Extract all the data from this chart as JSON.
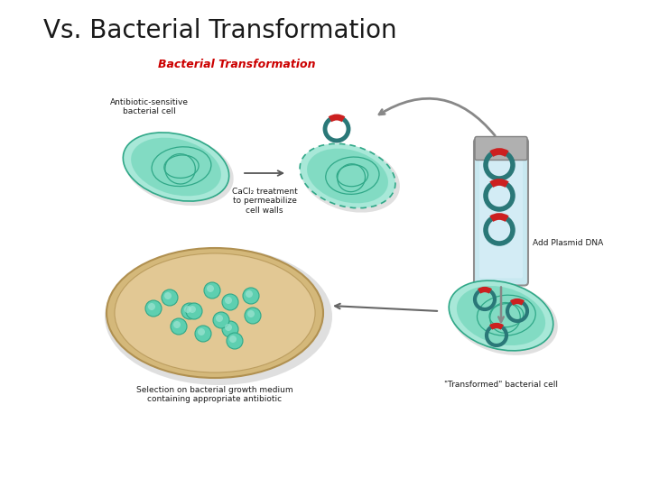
{
  "title": "Vs. Bacterial Transformation",
  "title_fontsize": 20,
  "title_color": "#1a1a1a",
  "background_color": "#ffffff",
  "diagram": {
    "title_text": "Bacterial Transformation",
    "title_color": "#cc0000",
    "title_fontsize": 9,
    "label_antibiotic": "Antibiotic-sensitive\nbacterial cell",
    "label_cacl2": "CaCl₂ treatment\nto permeabilize\ncell walls",
    "label_plasmid": "Add Plasmid DNA",
    "label_selection": "Selection on bacterial growth medium\ncontaining appropriate antibiotic",
    "label_transformed": "\"Transformed\" bacterial cell",
    "cell_fill": "#5ecfb0",
    "cell_fill2": "#a8e8d8",
    "cell_edge": "#30a888",
    "plate_fill": "#d4b87a",
    "plate_fill2": "#e8d0a0",
    "plate_edge": "#b09050",
    "plasmid_teal": "#2a7878",
    "plasmid_red": "#cc2020",
    "tube_fill": "#c8e8f0",
    "tube_edge": "#909090",
    "tube_cap": "#b0b0b0",
    "arrow_color": "#888888"
  }
}
